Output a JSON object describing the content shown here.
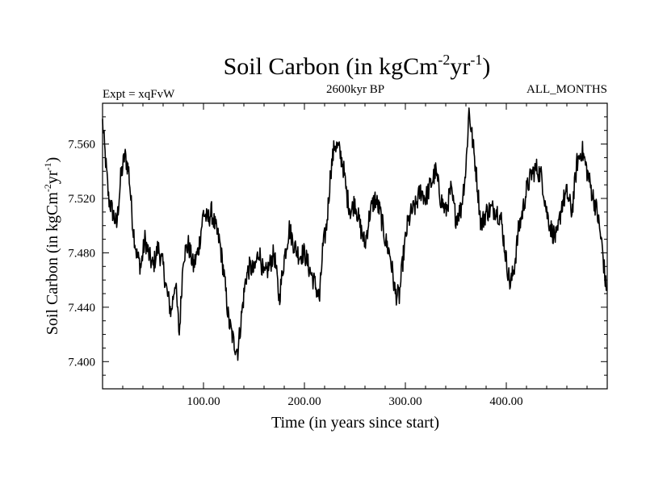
{
  "chart_data": {
    "type": "line",
    "title": "Soil Carbon (in kgCm",
    "title_sup1": "-2",
    "title_mid": "yr",
    "title_sup2": "-1",
    "title_end": ")",
    "subtitle_left": "Expt = xqFvW",
    "subtitle_center": "2600kyr BP",
    "subtitle_right": "ALL_MONTHS",
    "xlabel": "Time (in years since start)",
    "ylabel_base": "Soil Carbon (in kgCm",
    "ylabel_sup1": "-2",
    "ylabel_mid": "yr",
    "ylabel_sup2": "-1",
    "ylabel_end": ")",
    "xlim": [
      0,
      500
    ],
    "ylim": [
      7.38,
      7.59
    ],
    "x_ticks": [
      100,
      200,
      300,
      400
    ],
    "x_tick_labels": [
      "100.00",
      "200.00",
      "300.00",
      "400.00"
    ],
    "y_ticks": [
      7.4,
      7.44,
      7.48,
      7.52,
      7.56
    ],
    "y_tick_labels": [
      "7.400",
      "7.440",
      "7.480",
      "7.520",
      "7.560"
    ],
    "series": [
      {
        "name": "Soil Carbon",
        "color": "#000000",
        "x": [
          0,
          3,
          6,
          10,
          14,
          18,
          22,
          26,
          30,
          34,
          38,
          42,
          46,
          50,
          55,
          60,
          64,
          68,
          72,
          76,
          80,
          85,
          90,
          95,
          100,
          104,
          108,
          112,
          116,
          120,
          125,
          130,
          134,
          138,
          142,
          146,
          150,
          155,
          160,
          165,
          170,
          175,
          180,
          185,
          190,
          195,
          200,
          205,
          210,
          215,
          218,
          222,
          226,
          230,
          234,
          238,
          242,
          246,
          250,
          255,
          260,
          265,
          270,
          275,
          280,
          285,
          290,
          294,
          298,
          302,
          306,
          310,
          315,
          320,
          325,
          330,
          335,
          340,
          345,
          350,
          355,
          360,
          363,
          366,
          370,
          375,
          380,
          385,
          390,
          395,
          400,
          404,
          408,
          412,
          416,
          420,
          425,
          430,
          435,
          440,
          445,
          450,
          455,
          460,
          465,
          470,
          475,
          480,
          485,
          490,
          495,
          499
        ],
        "values": [
          7.576,
          7.548,
          7.52,
          7.51,
          7.5,
          7.535,
          7.552,
          7.54,
          7.5,
          7.478,
          7.47,
          7.49,
          7.478,
          7.47,
          7.484,
          7.47,
          7.45,
          7.436,
          7.46,
          7.42,
          7.478,
          7.486,
          7.47,
          7.482,
          7.51,
          7.504,
          7.51,
          7.498,
          7.488,
          7.466,
          7.43,
          7.414,
          7.408,
          7.436,
          7.462,
          7.47,
          7.466,
          7.482,
          7.462,
          7.47,
          7.48,
          7.446,
          7.476,
          7.498,
          7.485,
          7.478,
          7.48,
          7.468,
          7.458,
          7.446,
          7.482,
          7.5,
          7.54,
          7.56,
          7.556,
          7.546,
          7.522,
          7.51,
          7.518,
          7.5,
          7.486,
          7.51,
          7.52,
          7.51,
          7.49,
          7.478,
          7.45,
          7.448,
          7.478,
          7.5,
          7.51,
          7.514,
          7.526,
          7.52,
          7.53,
          7.54,
          7.52,
          7.51,
          7.526,
          7.506,
          7.512,
          7.542,
          7.585,
          7.566,
          7.54,
          7.5,
          7.51,
          7.512,
          7.512,
          7.504,
          7.474,
          7.456,
          7.47,
          7.496,
          7.51,
          7.526,
          7.538,
          7.542,
          7.536,
          7.51,
          7.496,
          7.49,
          7.516,
          7.524,
          7.51,
          7.546,
          7.556,
          7.54,
          7.524,
          7.51,
          7.484,
          7.452
        ]
      }
    ]
  }
}
